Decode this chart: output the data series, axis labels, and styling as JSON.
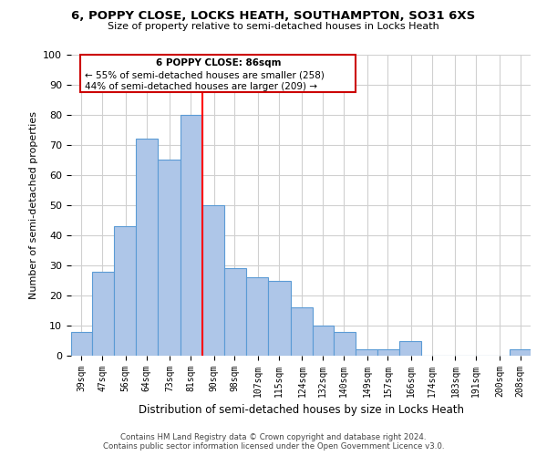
{
  "title": "6, POPPY CLOSE, LOCKS HEATH, SOUTHAMPTON, SO31 6XS",
  "subtitle": "Size of property relative to semi-detached houses in Locks Heath",
  "xlabel": "Distribution of semi-detached houses by size in Locks Heath",
  "ylabel": "Number of semi-detached properties",
  "categories": [
    "39sqm",
    "47sqm",
    "56sqm",
    "64sqm",
    "73sqm",
    "81sqm",
    "90sqm",
    "98sqm",
    "107sqm",
    "115sqm",
    "124sqm",
    "132sqm",
    "140sqm",
    "149sqm",
    "157sqm",
    "166sqm",
    "174sqm",
    "183sqm",
    "191sqm",
    "200sqm",
    "208sqm"
  ],
  "values": [
    8,
    28,
    43,
    72,
    65,
    80,
    50,
    29,
    26,
    25,
    16,
    10,
    8,
    2,
    2,
    5,
    0,
    0,
    0,
    0,
    2
  ],
  "bar_color": "#aec6e8",
  "bar_edge_color": "#5b9bd5",
  "grid_color": "#d0d0d0",
  "annotation_box_edge_color": "#cc0000",
  "annotation_text_line1": "6 POPPY CLOSE: 86sqm",
  "annotation_text_line2": "← 55% of semi-detached houses are smaller (258)",
  "annotation_text_line3": "44% of semi-detached houses are larger (209) →",
  "ylim": [
    0,
    100
  ],
  "background_color": "#ffffff",
  "footer_line1": "Contains HM Land Registry data © Crown copyright and database right 2024.",
  "footer_line2": "Contains public sector information licensed under the Open Government Licence v3.0."
}
